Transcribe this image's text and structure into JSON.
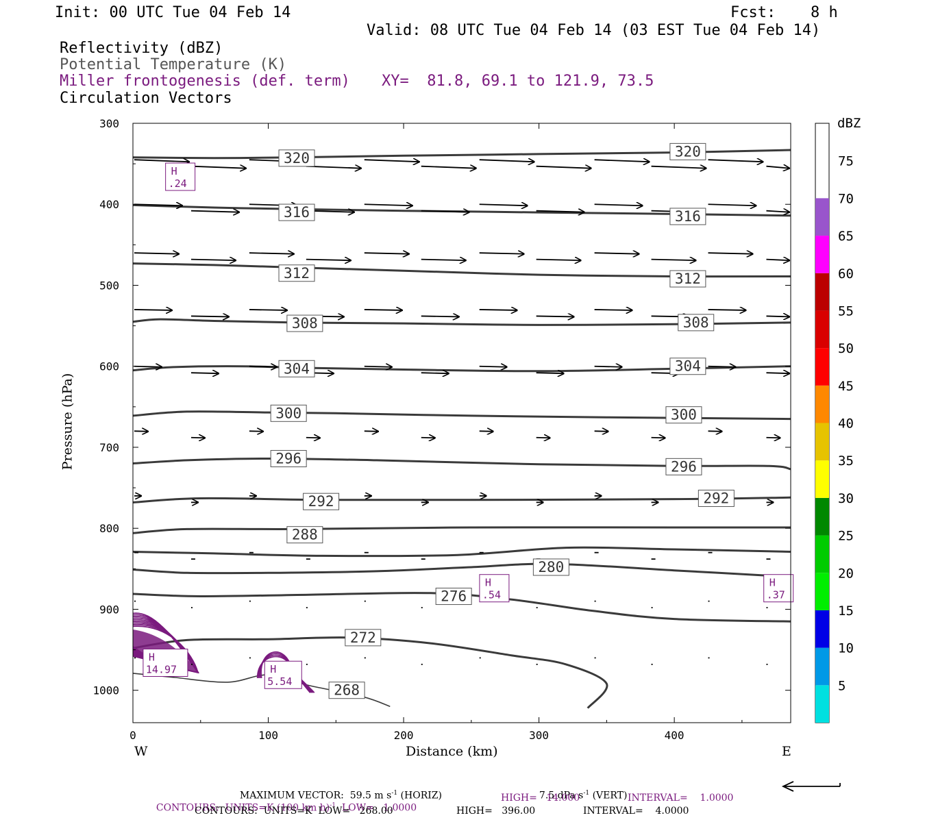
{
  "header": {
    "init": "Init: 00 UTC Tue 04 Feb 14",
    "fcst_label": "Fcst:",
    "fcst_value": "8 h",
    "valid": "Valid: 08 UTC Tue 04 Feb 14 (03 EST Tue 04 Feb 14)"
  },
  "legend_lines": {
    "reflectivity": "Reflectivity (dBZ)",
    "theta": "Potential Temperature (K)",
    "miller": "Miller frontogenesis (def. term)",
    "xy": "XY=  81.8, 69.1 to 121.9, 73.5",
    "vectors": "Circulation Vectors"
  },
  "colors": {
    "theta_line": "#3a3a3a",
    "frontogenesis": "#7a1a7e",
    "vector": "#000000"
  },
  "chart_data": {
    "type": "cross-section",
    "xlabel": "Distance (km)",
    "ylabel": "Pressure (hPa)",
    "xlim": [
      0,
      486
    ],
    "ylim": [
      1040,
      300
    ],
    "x_ticks": [
      0,
      100,
      200,
      300,
      400
    ],
    "y_ticks": [
      300,
      400,
      500,
      600,
      700,
      800,
      900,
      1000
    ],
    "x_end_labels": {
      "left": "W",
      "right": "E"
    },
    "theta_contours": [
      {
        "label": "320",
        "points": [
          [
            0,
            342
          ],
          [
            60,
            343
          ],
          [
            120,
            342
          ],
          [
            200,
            340
          ],
          [
            300,
            338
          ],
          [
            400,
            336
          ],
          [
            486,
            333
          ]
        ],
        "labels_at": [
          [
            121,
            343
          ],
          [
            410,
            335
          ]
        ]
      },
      {
        "label": "316",
        "points": [
          [
            0,
            401
          ],
          [
            60,
            404
          ],
          [
            120,
            406
          ],
          [
            200,
            408
          ],
          [
            300,
            410
          ],
          [
            400,
            412
          ],
          [
            486,
            414
          ]
        ],
        "labels_at": [
          [
            121,
            410
          ],
          [
            410,
            415
          ]
        ]
      },
      {
        "label": "312",
        "points": [
          [
            0,
            473
          ],
          [
            60,
            475
          ],
          [
            120,
            478
          ],
          [
            200,
            482
          ],
          [
            300,
            487
          ],
          [
            400,
            489
          ],
          [
            486,
            489
          ]
        ],
        "labels_at": [
          [
            121,
            485
          ],
          [
            410,
            492
          ]
        ]
      },
      {
        "label": "308",
        "points": [
          [
            0,
            545
          ],
          [
            20,
            542
          ],
          [
            60,
            544
          ],
          [
            120,
            546
          ],
          [
            200,
            547
          ],
          [
            300,
            549
          ],
          [
            400,
            548
          ],
          [
            486,
            546
          ]
        ],
        "labels_at": [
          [
            127,
            547
          ],
          [
            416,
            546
          ]
        ]
      },
      {
        "label": "304",
        "points": [
          [
            0,
            605
          ],
          [
            30,
            601
          ],
          [
            80,
            600
          ],
          [
            130,
            602
          ],
          [
            200,
            604
          ],
          [
            300,
            606
          ],
          [
            400,
            603
          ],
          [
            486,
            600
          ]
        ],
        "labels_at": [
          [
            121,
            603
          ],
          [
            410,
            600
          ]
        ]
      },
      {
        "label": "300",
        "points": [
          [
            0,
            661
          ],
          [
            40,
            656
          ],
          [
            100,
            657
          ],
          [
            150,
            658
          ],
          [
            250,
            661
          ],
          [
            350,
            663
          ],
          [
            486,
            665
          ]
        ],
        "labels_at": [
          [
            115,
            658
          ],
          [
            407,
            660
          ]
        ]
      },
      {
        "label": "296",
        "points": [
          [
            0,
            720
          ],
          [
            40,
            716
          ],
          [
            100,
            714
          ],
          [
            180,
            716
          ],
          [
            300,
            721
          ],
          [
            400,
            723
          ],
          [
            470,
            723
          ],
          [
            486,
            727
          ]
        ],
        "labels_at": [
          [
            115,
            714
          ],
          [
            407,
            724
          ]
        ]
      },
      {
        "label": "292",
        "points": [
          [
            0,
            768
          ],
          [
            50,
            763
          ],
          [
            140,
            765
          ],
          [
            250,
            765
          ],
          [
            400,
            764
          ],
          [
            486,
            762
          ]
        ],
        "labels_at": [
          [
            139,
            767
          ],
          [
            431,
            763
          ]
        ]
      },
      {
        "label": "288",
        "points": [
          [
            0,
            806
          ],
          [
            40,
            801
          ],
          [
            120,
            801
          ],
          [
            250,
            799
          ],
          [
            400,
            799
          ],
          [
            486,
            799
          ]
        ],
        "labels_at": [
          [
            127,
            808
          ],
          null
        ]
      },
      {
        "label": "",
        "points": [
          [
            0,
            829
          ],
          [
            60,
            831
          ],
          [
            140,
            834
          ],
          [
            240,
            833
          ],
          [
            320,
            824
          ],
          [
            400,
            826
          ],
          [
            486,
            829
          ]
        ],
        "labels_at": []
      },
      {
        "label": "280",
        "points": [
          [
            0,
            851
          ],
          [
            40,
            855
          ],
          [
            100,
            855
          ],
          [
            180,
            853
          ],
          [
            250,
            848
          ],
          [
            310,
            844
          ],
          [
            400,
            852
          ],
          [
            486,
            860
          ]
        ],
        "labels_at": [
          [
            309,
            848
          ],
          null
        ]
      },
      {
        "label": "276",
        "points": [
          [
            0,
            881
          ],
          [
            50,
            884
          ],
          [
            130,
            882
          ],
          [
            220,
            880
          ],
          [
            280,
            888
          ],
          [
            340,
            902
          ],
          [
            400,
            912
          ],
          [
            486,
            915
          ]
        ],
        "labels_at": [
          [
            237,
            884
          ],
          null
        ]
      },
      {
        "label": "272",
        "points": [
          [
            0,
            948
          ],
          [
            40,
            938
          ],
          [
            100,
            937
          ],
          [
            160,
            935
          ],
          [
            220,
            942
          ],
          [
            280,
            957
          ],
          [
            320,
            968
          ],
          [
            350,
            992
          ],
          [
            336,
            1022
          ]
        ],
        "labels_at": [
          [
            170,
            935
          ],
          null
        ]
      },
      {
        "label": "268",
        "points": [
          [
            0,
            979
          ],
          [
            30,
            984
          ],
          [
            70,
            990
          ],
          [
            100,
            981
          ],
          [
            130,
            994
          ],
          [
            170,
            1008
          ],
          [
            190,
            1020
          ]
        ],
        "labels_at": [
          [
            158,
            1000
          ],
          null
        ]
      }
    ],
    "frontogenesis_maxima": [
      {
        "label": "H",
        "value": ".24",
        "x": 35,
        "p": 366
      },
      {
        "label": "H",
        "value": "14.97",
        "x": 24,
        "p": 966
      },
      {
        "label": "H",
        "value": "5.54",
        "x": 111,
        "p": 981
      },
      {
        "label": "H",
        "value": ".54",
        "x": 267,
        "p": 874
      },
      {
        "label": "H",
        "value": ".37",
        "x": 477,
        "p": 874
      }
    ],
    "reflectivity_scale": {
      "unit": "dBZ",
      "levels": [
        5,
        10,
        15,
        20,
        25,
        30,
        35,
        40,
        45,
        50,
        55,
        60,
        65,
        70,
        75
      ],
      "colors": [
        "#00e0e0",
        "#0099e6",
        "#0000e6",
        "#00ee00",
        "#00cc00",
        "#008800",
        "#ffff00",
        "#e6c300",
        "#ff8800",
        "#ff0000",
        "#d90000",
        "#bb0000",
        "#ff00ff",
        "#9955cc",
        "#ffffff"
      ]
    }
  },
  "footer": {
    "line1": "MAXIMUM VECTOR:  59.5 m s",
    "line1_sup": "-1",
    "line1b": " (HORIZ)",
    "line1c": "7.5 dPa s",
    "line1c_sup": "-1",
    "line1d": " (VERT)",
    "line2a": "CONTOURS:  UNITS=K (100 km h)",
    "line2a_sup": "-1",
    "line2b": "  LOW=   1.0000",
    "line2c": "HIGH=   14.000",
    "line2d": "INTERVAL=    1.0000",
    "line3a": "CONTOURS:  UNITS=K  LOW=   268.00",
    "line3b": "HIGH=   396.00",
    "line3c": "INTERVAL=    4.0000"
  }
}
